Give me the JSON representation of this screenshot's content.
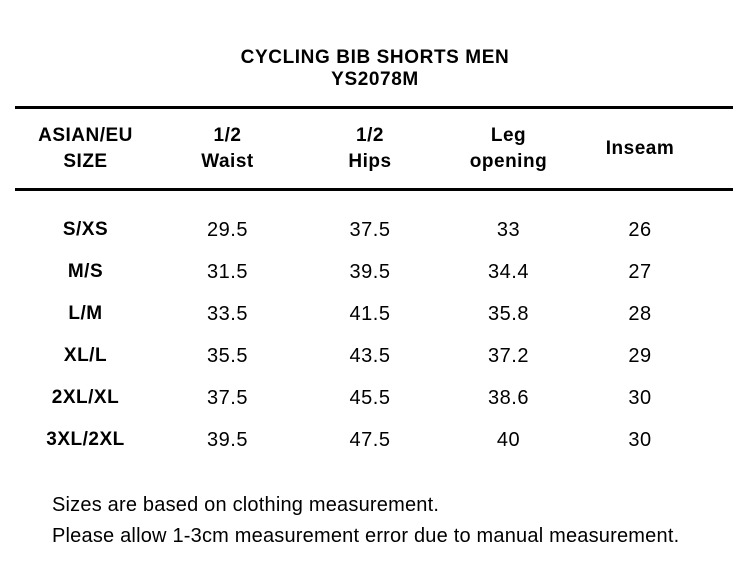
{
  "page": {
    "background_color": "#ffffff",
    "text_color": "#000000",
    "rule_color": "#000000"
  },
  "title": {
    "line1": "CYCLING BIB SHORTS MEN",
    "line2": "YS2078M"
  },
  "table": {
    "headers": [
      {
        "line1": "ASIAN/EU",
        "line2": "SIZE"
      },
      {
        "line1": "1/2",
        "line2": "Waist"
      },
      {
        "line1": "1/2",
        "line2": "Hips"
      },
      {
        "line1": "Leg",
        "line2": "opening"
      },
      {
        "line1": "Inseam",
        "line2": ""
      }
    ],
    "rows": [
      {
        "size": "S/XS",
        "half_waist": "29.5",
        "half_hips": "37.5",
        "leg_opening": "33",
        "inseam": "26"
      },
      {
        "size": "M/S",
        "half_waist": "31.5",
        "half_hips": "39.5",
        "leg_opening": "34.4",
        "inseam": "27"
      },
      {
        "size": "L/M",
        "half_waist": "33.5",
        "half_hips": "41.5",
        "leg_opening": "35.8",
        "inseam": "28"
      },
      {
        "size": "XL/L",
        "half_waist": "35.5",
        "half_hips": "43.5",
        "leg_opening": "37.2",
        "inseam": "29"
      },
      {
        "size": "2XL/XL",
        "half_waist": "37.5",
        "half_hips": "45.5",
        "leg_opening": "38.6",
        "inseam": "30"
      },
      {
        "size": "3XL/2XL",
        "half_waist": "39.5",
        "half_hips": "47.5",
        "leg_opening": "40",
        "inseam": "30"
      }
    ]
  },
  "notes": {
    "line1": "Sizes are based on clothing measurement.",
    "line2": "Please allow 1-3cm measurement error due to manual measurement."
  }
}
